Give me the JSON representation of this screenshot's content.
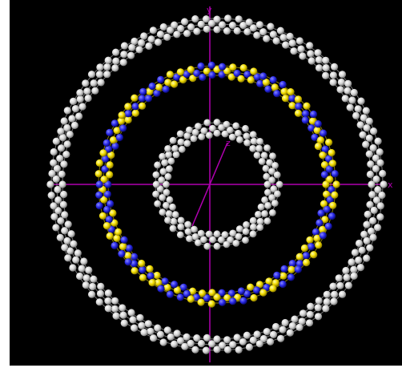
{
  "viewer": {
    "background": "#000000",
    "axis_color": "#b000b0"
  },
  "axes": {
    "x_label": "x",
    "y_label": "y",
    "z_label": "z"
  },
  "atom_colors": {
    "outer_ring": "#d8d8d8",
    "middle_ring_a": "#f5e100",
    "middle_ring_b": "#2828e6",
    "inner_ring": "#d8d8d8"
  }
}
